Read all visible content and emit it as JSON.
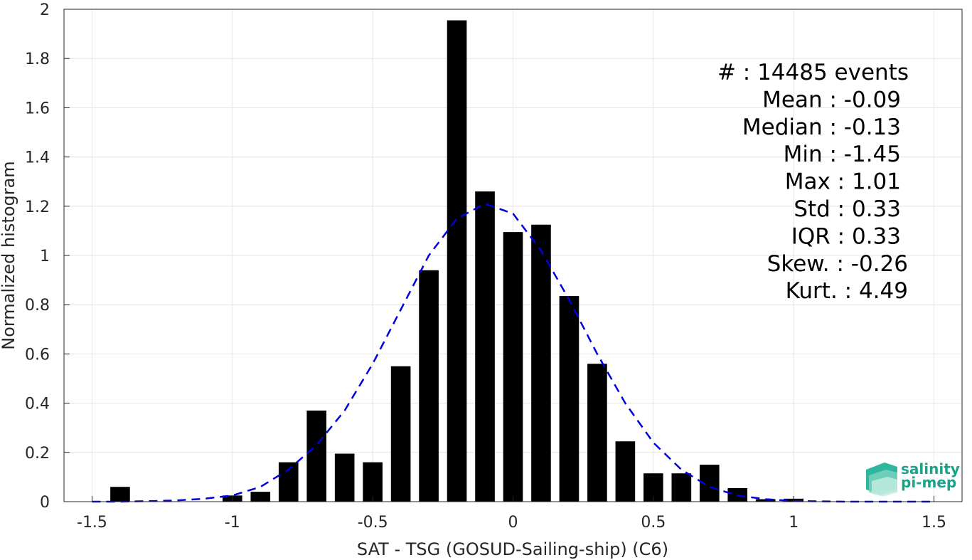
{
  "chart_data": {
    "type": "bar",
    "xlabel": "SAT - TSG (GOSUD-Sailing-ship) (C6)",
    "ylabel": "Normalized histogram",
    "xlim": [
      -1.6,
      1.6
    ],
    "ylim": [
      0,
      2
    ],
    "xticks": [
      "-1.5",
      "-1",
      "-0.5",
      "0",
      "0.5",
      "1",
      "1.5"
    ],
    "yticks": [
      "0",
      "0.2",
      "0.4",
      "0.6",
      "0.8",
      "1",
      "1.2",
      "1.4",
      "1.6",
      "1.8",
      "2"
    ],
    "grid": true,
    "bar_color": "#000000",
    "bar_width": 0.07,
    "bins": [
      {
        "x": -1.4,
        "y": 0.06
      },
      {
        "x": -1.0,
        "y": 0.025
      },
      {
        "x": -0.9,
        "y": 0.04
      },
      {
        "x": -0.8,
        "y": 0.16
      },
      {
        "x": -0.7,
        "y": 0.37
      },
      {
        "x": -0.6,
        "y": 0.195
      },
      {
        "x": -0.5,
        "y": 0.16
      },
      {
        "x": -0.4,
        "y": 0.55
      },
      {
        "x": -0.3,
        "y": 0.94
      },
      {
        "x": -0.2,
        "y": 1.955
      },
      {
        "x": -0.1,
        "y": 1.26
      },
      {
        "x": 0.0,
        "y": 1.095
      },
      {
        "x": 0.1,
        "y": 1.125
      },
      {
        "x": 0.2,
        "y": 0.835
      },
      {
        "x": 0.3,
        "y": 0.56
      },
      {
        "x": 0.4,
        "y": 0.245
      },
      {
        "x": 0.5,
        "y": 0.115
      },
      {
        "x": 0.6,
        "y": 0.115
      },
      {
        "x": 0.7,
        "y": 0.15
      },
      {
        "x": 0.8,
        "y": 0.055
      },
      {
        "x": 0.9,
        "y": 0.01
      },
      {
        "x": 1.0,
        "y": 0.012
      }
    ],
    "fit_curve": {
      "color": "#0000dd",
      "style": "dashed",
      "x": [
        -1.5,
        -1.4,
        -1.3,
        -1.2,
        -1.1,
        -1.0,
        -0.9,
        -0.8,
        -0.7,
        -0.6,
        -0.5,
        -0.4,
        -0.3,
        -0.2,
        -0.1,
        0.0,
        0.1,
        0.2,
        0.3,
        0.4,
        0.5,
        0.6,
        0.7,
        0.8,
        0.9,
        1.0,
        1.1,
        1.2,
        1.3,
        1.4,
        1.5
      ],
      "y": [
        0.0,
        0.0,
        0.002,
        0.005,
        0.012,
        0.025,
        0.06,
        0.13,
        0.23,
        0.37,
        0.56,
        0.78,
        1.0,
        1.15,
        1.21,
        1.17,
        1.02,
        0.82,
        0.6,
        0.4,
        0.24,
        0.13,
        0.06,
        0.025,
        0.01,
        0.003,
        0.001,
        0.0,
        0.0,
        0.0,
        0.0
      ]
    },
    "stats": [
      {
        "label": "#  : 14485 events"
      },
      {
        "label": "Mean : -0.09"
      },
      {
        "label": "Median : -0.13"
      },
      {
        "label": "Min : -1.45"
      },
      {
        "label": "Max : 1.01"
      },
      {
        "label": "Std : 0.33"
      },
      {
        "label": "IQR : 0.33"
      },
      {
        "label": "Skew. : -0.26"
      },
      {
        "label": "Kurt. : 4.49"
      }
    ]
  },
  "logo": {
    "line1": "salinity",
    "line2": "pi-mep",
    "color": "#1aa38a"
  }
}
